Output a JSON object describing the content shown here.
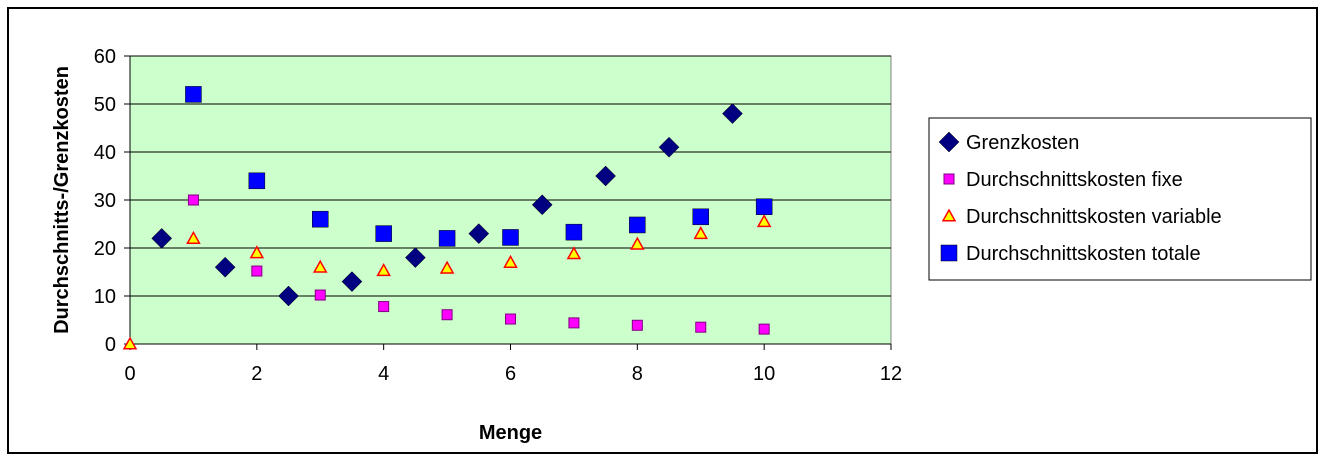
{
  "chart_data": {
    "type": "scatter",
    "title": "",
    "xlabel": "Menge",
    "ylabel": "Durchschnitts-/Grenzkosten",
    "xlim": [
      0,
      12
    ],
    "ylim": [
      0,
      60
    ],
    "x_ticks": [
      "0",
      "2",
      "4",
      "6",
      "8",
      "10",
      "12"
    ],
    "y_ticks": [
      "0",
      "10",
      "20",
      "30",
      "40",
      "50",
      "60"
    ],
    "plot_background": "#ccffcc",
    "grid": "horizontal",
    "legend_position": "right",
    "series": [
      {
        "name": "Grenzkosten",
        "marker": "diamond",
        "color": "#000080",
        "points": [
          [
            0.5,
            22
          ],
          [
            1.5,
            16
          ],
          [
            2.5,
            10
          ],
          [
            3.5,
            13
          ],
          [
            4.5,
            18
          ],
          [
            5.5,
            23
          ],
          [
            6.5,
            29
          ],
          [
            7.5,
            35
          ],
          [
            8.5,
            41
          ],
          [
            9.5,
            48
          ]
        ]
      },
      {
        "name": "Durchschnittskosten fixe",
        "marker": "square-small",
        "color": "#ff00ff",
        "points": [
          [
            1,
            30
          ],
          [
            2,
            15.2
          ],
          [
            3,
            10.2
          ],
          [
            4,
            7.8
          ],
          [
            5,
            6.1
          ],
          [
            6,
            5.2
          ],
          [
            7,
            4.4
          ],
          [
            8,
            3.9
          ],
          [
            9,
            3.5
          ],
          [
            10,
            3.1
          ]
        ]
      },
      {
        "name": "Durchschnittskosten variable",
        "marker": "triangle",
        "color": "#ffff00",
        "points": [
          [
            0,
            0
          ],
          [
            1,
            22
          ],
          [
            2,
            19
          ],
          [
            3,
            16
          ],
          [
            4,
            15.3
          ],
          [
            5,
            15.8
          ],
          [
            6,
            17
          ],
          [
            7,
            18.8
          ],
          [
            8,
            20.8
          ],
          [
            9,
            23
          ],
          [
            10,
            25.5
          ]
        ]
      },
      {
        "name": "Durchschnittskosten totale",
        "marker": "square",
        "color": "#0000ff",
        "points": [
          [
            1,
            52
          ],
          [
            2,
            34
          ],
          [
            3,
            26
          ],
          [
            4,
            23
          ],
          [
            5,
            22
          ],
          [
            6,
            22.2
          ],
          [
            7,
            23.3
          ],
          [
            8,
            24.8
          ],
          [
            9,
            26.5
          ],
          [
            10,
            28.6
          ]
        ]
      }
    ]
  }
}
